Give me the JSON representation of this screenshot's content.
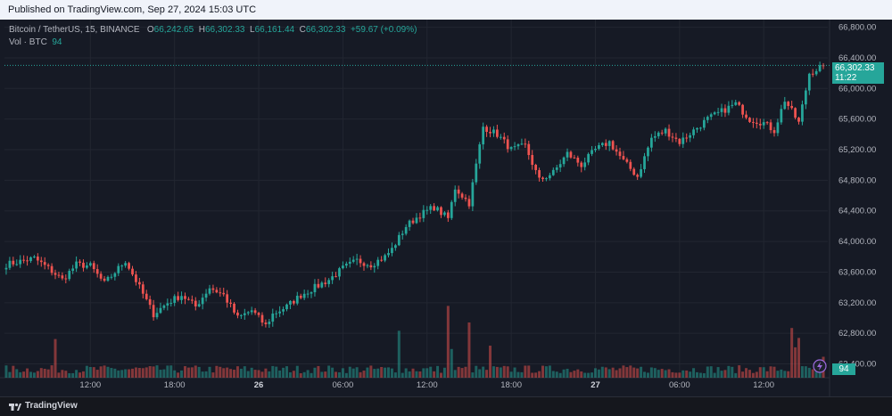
{
  "header": {
    "published": "Published on TradingView.com, Sep 27, 2024 15:03 UTC"
  },
  "legend": {
    "symbol": "Bitcoin / TetherUS, 15, BINANCE",
    "open_label": "O",
    "open": "66,242.65",
    "high_label": "H",
    "high": "66,302.33",
    "low_label": "L",
    "low": "66,161.44",
    "close_label": "C",
    "close": "66,302.33",
    "change": "+59.67 (+0.09%)",
    "vol_label": "Vol · BTC",
    "vol_value": "94"
  },
  "price_tag": {
    "price": "66,302.33",
    "countdown": "11:22"
  },
  "volume_tag": "94",
  "footer": {
    "brand": "TradingView"
  },
  "colors": {
    "up": "#26a69a",
    "down": "#ef5350",
    "background": "#161a25",
    "grid": "#222631"
  },
  "chart_data": {
    "type": "candlestick",
    "y_axis": {
      "range": [
        62220,
        66900
      ],
      "ticks": [
        66800,
        66400,
        66000,
        65600,
        65200,
        64800,
        64400,
        64000,
        63600,
        63200,
        62800,
        62400
      ],
      "tick_labels": [
        "66,800.00",
        "66,400.00",
        "66,000.00",
        "65,600.00",
        "65,200.00",
        "64,800.00",
        "64,400.00",
        "64,000.00",
        "63,600.00",
        "63,200.00",
        "62,800.00",
        "62,400.00"
      ]
    },
    "x_axis": {
      "ticks": [
        {
          "label": "12:00",
          "bar": 24,
          "bold": false
        },
        {
          "label": "18:00",
          "bar": 48,
          "bold": false
        },
        {
          "label": "26",
          "bar": 72,
          "bold": true
        },
        {
          "label": "06:00",
          "bar": 96,
          "bold": false
        },
        {
          "label": "12:00",
          "bar": 120,
          "bold": false
        },
        {
          "label": "18:00",
          "bar": 144,
          "bold": false
        },
        {
          "label": "27",
          "bar": 168,
          "bold": true
        },
        {
          "label": "06:00",
          "bar": 192,
          "bold": false
        },
        {
          "label": "12:00",
          "bar": 216,
          "bold": false
        }
      ]
    },
    "close_path": [
      [
        0,
        63700
      ],
      [
        8,
        63780
      ],
      [
        12,
        63650
      ],
      [
        16,
        63500
      ],
      [
        20,
        63700
      ],
      [
        24,
        63680
      ],
      [
        28,
        63450
      ],
      [
        32,
        63650
      ],
      [
        34,
        63750
      ],
      [
        38,
        63400
      ],
      [
        42,
        63050
      ],
      [
        46,
        63200
      ],
      [
        50,
        63300
      ],
      [
        54,
        63150
      ],
      [
        58,
        63400
      ],
      [
        62,
        63300
      ],
      [
        66,
        63000
      ],
      [
        70,
        63100
      ],
      [
        74,
        62900
      ],
      [
        76,
        63050
      ],
      [
        80,
        63150
      ],
      [
        84,
        63300
      ],
      [
        88,
        63400
      ],
      [
        92,
        63500
      ],
      [
        96,
        63650
      ],
      [
        100,
        63750
      ],
      [
        104,
        63700
      ],
      [
        108,
        63800
      ],
      [
        110,
        63900
      ],
      [
        114,
        64200
      ],
      [
        118,
        64350
      ],
      [
        122,
        64450
      ],
      [
        126,
        64300
      ],
      [
        128,
        64700
      ],
      [
        132,
        64500
      ],
      [
        136,
        65500
      ],
      [
        140,
        65400
      ],
      [
        144,
        65200
      ],
      [
        148,
        65250
      ],
      [
        152,
        64800
      ],
      [
        156,
        64900
      ],
      [
        160,
        65150
      ],
      [
        164,
        65000
      ],
      [
        168,
        65200
      ],
      [
        172,
        65300
      ],
      [
        176,
        65050
      ],
      [
        180,
        64850
      ],
      [
        184,
        65350
      ],
      [
        188,
        65450
      ],
      [
        192,
        65300
      ],
      [
        196,
        65450
      ],
      [
        200,
        65600
      ],
      [
        204,
        65700
      ],
      [
        208,
        65800
      ],
      [
        212,
        65600
      ],
      [
        216,
        65550
      ],
      [
        219,
        65450
      ],
      [
        222,
        65850
      ],
      [
        224,
        65700
      ],
      [
        226,
        65550
      ],
      [
        229,
        66200
      ],
      [
        233,
        66300
      ]
    ],
    "total_bars": 234,
    "volume": {
      "typical_range": [
        5,
        25
      ],
      "spikes": [
        {
          "bar": 14,
          "value": 70
        },
        {
          "bar": 112,
          "value": 85
        },
        {
          "bar": 126,
          "value": 130
        },
        {
          "bar": 127,
          "value": 52
        },
        {
          "bar": 132,
          "value": 100
        },
        {
          "bar": 138,
          "value": 58
        },
        {
          "bar": 224,
          "value": 90
        },
        {
          "bar": 226,
          "value": 72
        },
        {
          "bar": 225,
          "value": 55
        }
      ],
      "last": 94
    }
  }
}
